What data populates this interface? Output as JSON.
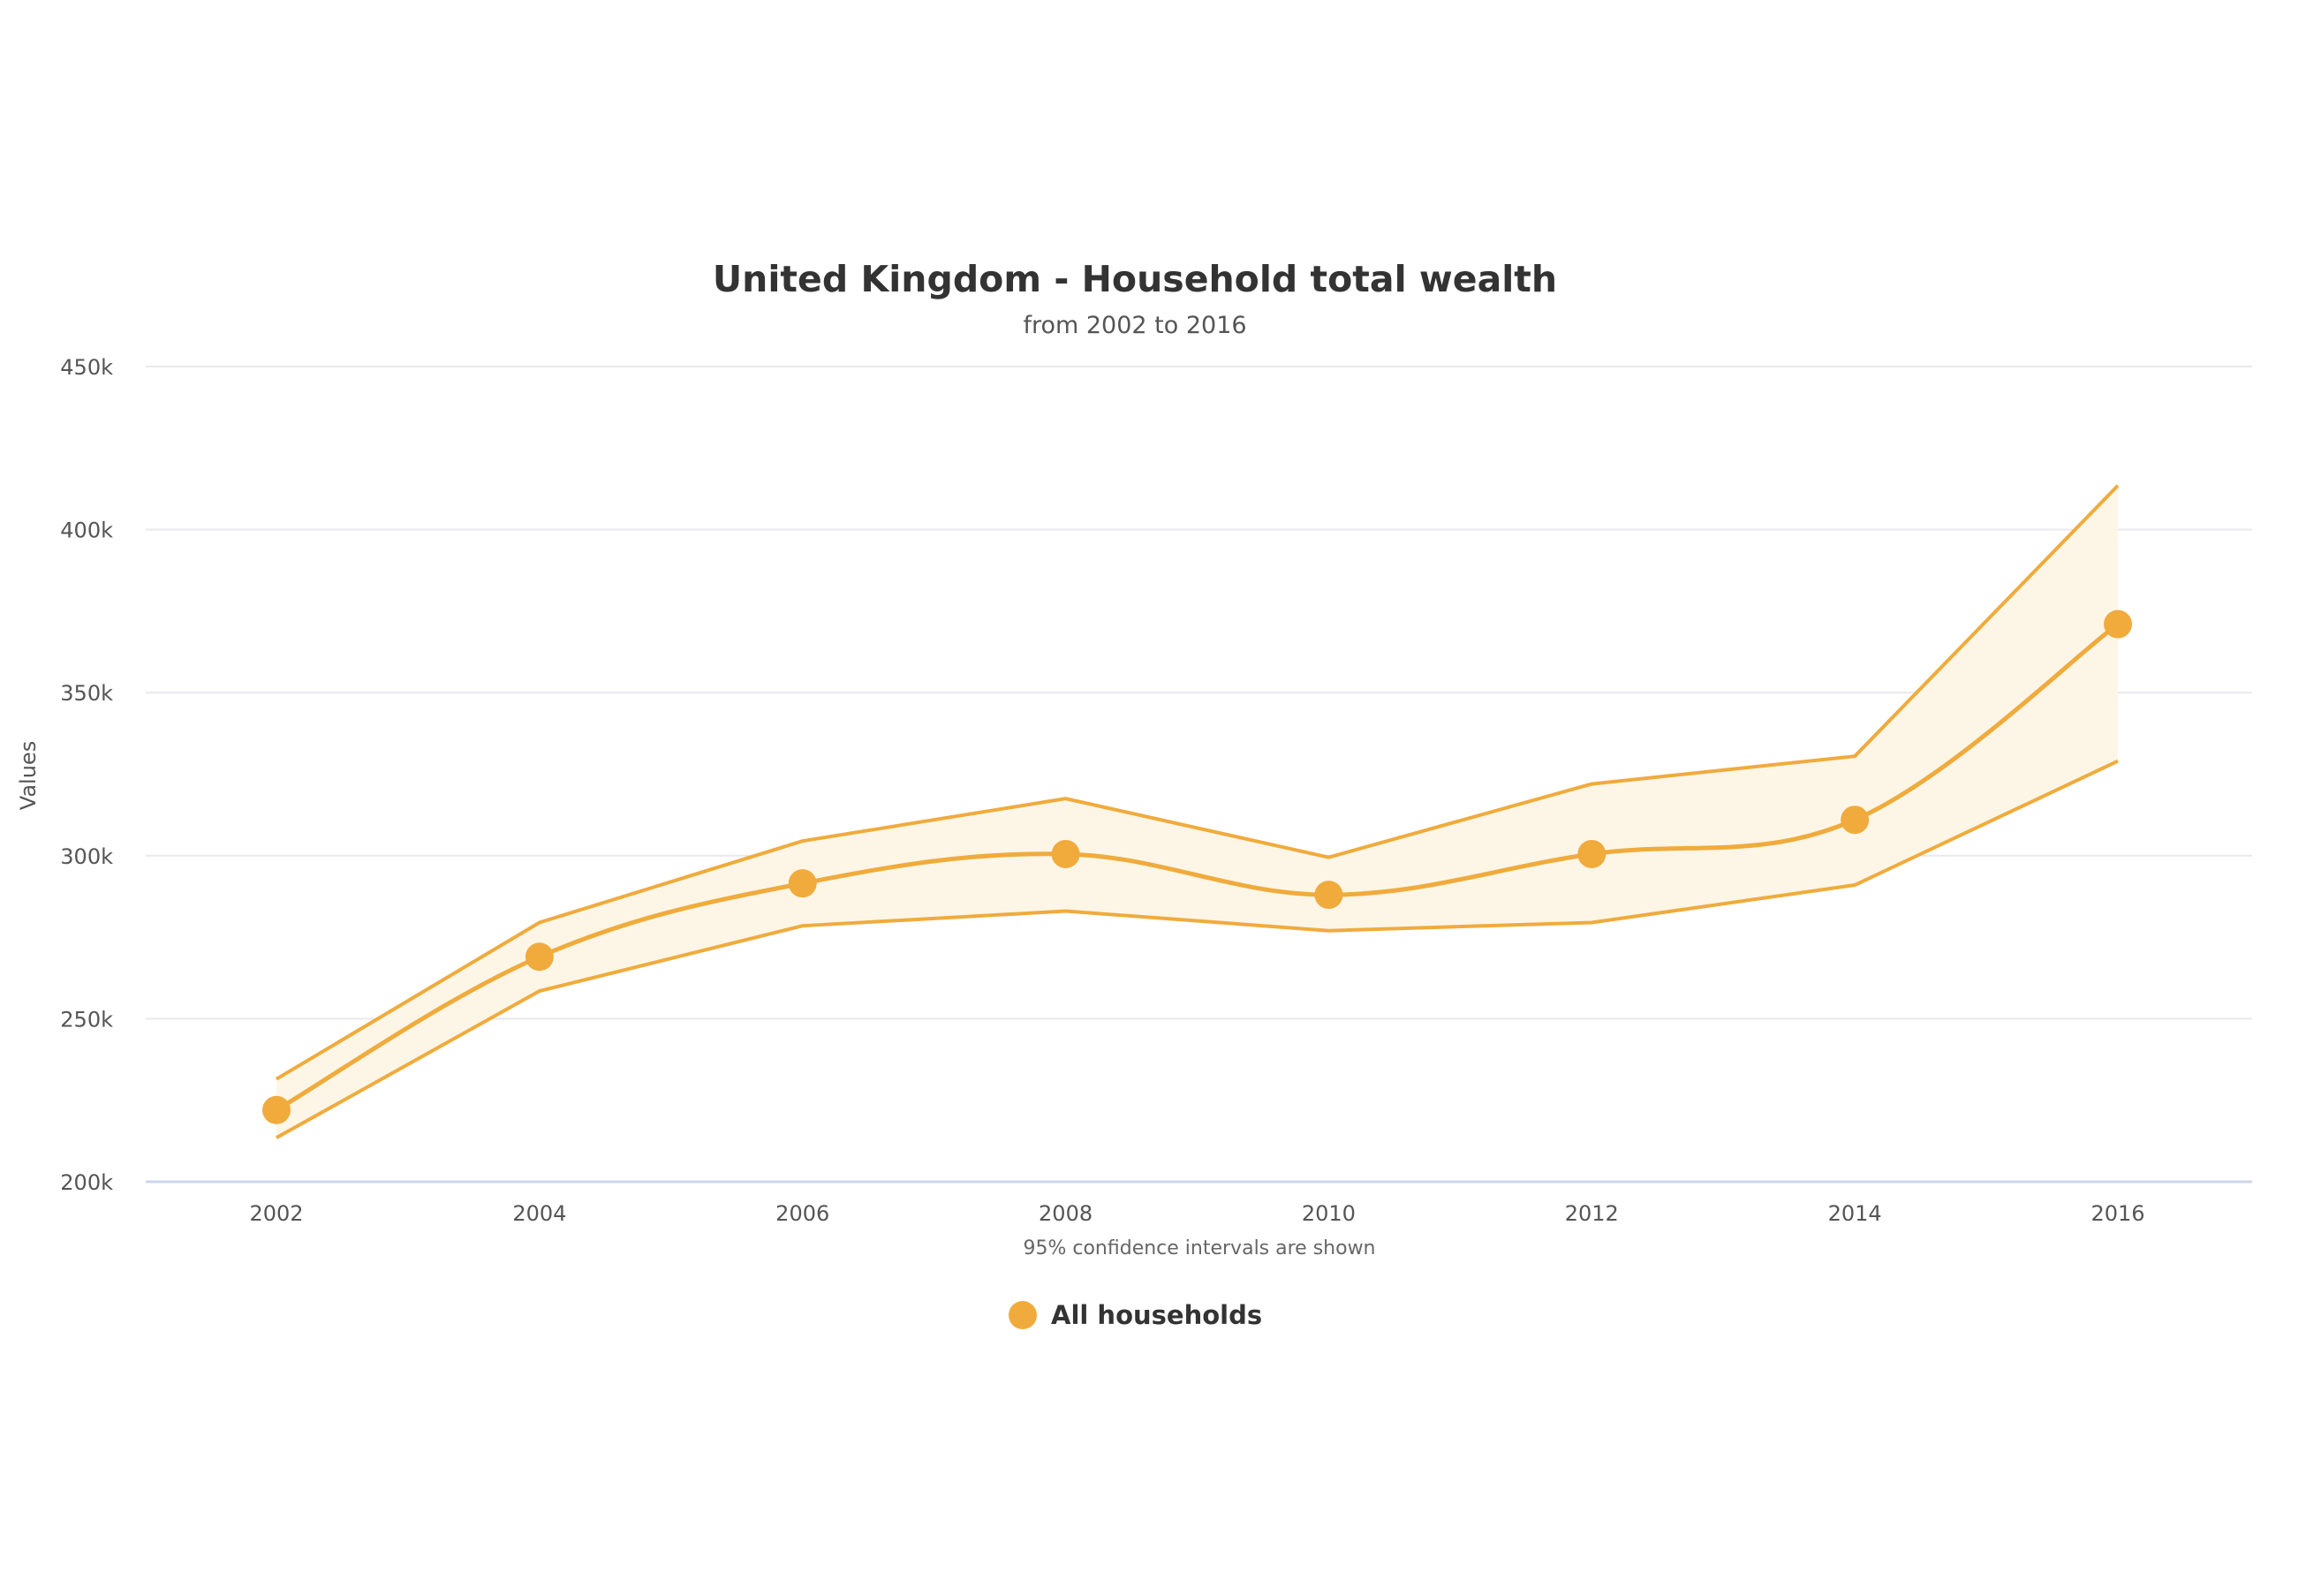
{
  "chart_data": {
    "type": "line",
    "title": "United Kingdom - Household total wealth",
    "subtitle": "from 2002 to 2016",
    "ylabel": "Values",
    "note": "95% confidence intervals are shown",
    "x": [
      "2002",
      "2004",
      "2006",
      "2008",
      "2010",
      "2012",
      "2014",
      "2016"
    ],
    "y_ticks": [
      "200k",
      "250k",
      "300k",
      "350k",
      "400k",
      "450k"
    ],
    "ylim": [
      200000,
      450000
    ],
    "grid": true,
    "legend_position": "bottom",
    "colors": {
      "series": "#f0ab3c",
      "band_fill": "#fdf6e7",
      "grid": "#e9e9ee",
      "axis": "#ccd6eb"
    },
    "series": [
      {
        "name": "All households",
        "values": [
          222000,
          269000,
          291500,
          300500,
          288000,
          300500,
          311000,
          371000
        ],
        "ci_upper": [
          231500,
          279500,
          304500,
          317500,
          299500,
          322000,
          330500,
          413500
        ],
        "ci_lower": [
          213500,
          258500,
          278500,
          283000,
          277000,
          279500,
          291000,
          329000
        ]
      }
    ]
  }
}
